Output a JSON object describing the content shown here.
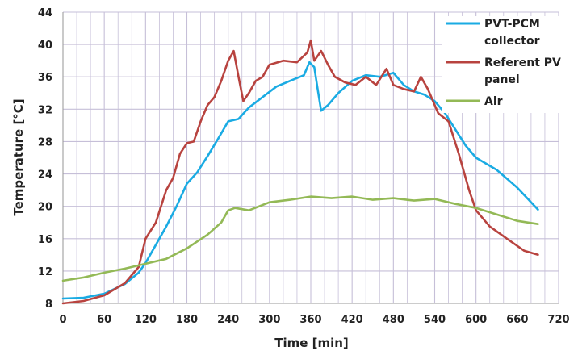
{
  "chart_data": {
    "type": "line",
    "xlabel": "Time [min]",
    "ylabel": "Temperature [°C]",
    "xlim": [
      0,
      720
    ],
    "ylim": [
      8,
      44
    ],
    "x_ticks": [
      0,
      60,
      120,
      180,
      240,
      300,
      360,
      420,
      480,
      540,
      600,
      660,
      720
    ],
    "y_ticks": [
      8,
      12,
      16,
      20,
      24,
      28,
      32,
      36,
      40,
      44
    ],
    "grid": true,
    "legend_position": "top-right",
    "series": [
      {
        "name": "PVT-PCM collector",
        "legend_lines": [
          "PVT-PCM",
          "collector"
        ],
        "color": "#1AABE3",
        "x": [
          0,
          30,
          60,
          90,
          110,
          120,
          130,
          150,
          165,
          180,
          195,
          210,
          225,
          240,
          255,
          270,
          290,
          310,
          330,
          350,
          358,
          365,
          370,
          375,
          385,
          400,
          420,
          440,
          460,
          480,
          495,
          510,
          525,
          540,
          555,
          570,
          585,
          600,
          630,
          660,
          690
        ],
        "y": [
          8.6,
          8.7,
          9.2,
          10.4,
          11.8,
          13.0,
          14.5,
          17.5,
          20.0,
          22.8,
          24.2,
          26.2,
          28.3,
          30.5,
          30.8,
          32.2,
          33.5,
          34.8,
          35.5,
          36.2,
          37.8,
          37.2,
          34.5,
          31.8,
          32.5,
          34.0,
          35.5,
          36.2,
          36.0,
          36.5,
          35.0,
          34.2,
          33.8,
          33.0,
          31.5,
          29.5,
          27.5,
          26.0,
          24.5,
          22.3,
          19.6
        ]
      },
      {
        "name": "Referent PV panel",
        "legend_lines": [
          "Referent PV",
          "panel"
        ],
        "color": "#B8433F",
        "x": [
          0,
          30,
          60,
          90,
          110,
          120,
          135,
          150,
          160,
          170,
          180,
          190,
          200,
          210,
          220,
          230,
          240,
          248,
          255,
          262,
          270,
          280,
          290,
          300,
          320,
          340,
          355,
          360,
          365,
          375,
          385,
          395,
          410,
          425,
          440,
          455,
          470,
          480,
          495,
          510,
          520,
          530,
          545,
          560,
          575,
          590,
          600,
          620,
          645,
          670,
          690
        ],
        "y": [
          8.0,
          8.3,
          9.0,
          10.5,
          12.5,
          16.0,
          18.0,
          22.0,
          23.5,
          26.5,
          27.8,
          28.0,
          30.5,
          32.5,
          33.5,
          35.5,
          38.0,
          39.2,
          36.0,
          33.0,
          34.0,
          35.5,
          36.0,
          37.5,
          38.0,
          37.8,
          39.0,
          40.5,
          38.0,
          39.2,
          37.5,
          36.0,
          35.3,
          35.0,
          36.0,
          35.0,
          37.0,
          35.0,
          34.5,
          34.2,
          36.0,
          34.5,
          31.5,
          30.5,
          26.5,
          22.0,
          19.5,
          17.5,
          16.0,
          14.5,
          14.0
        ]
      },
      {
        "name": "Air",
        "legend_lines": [
          "Air"
        ],
        "color": "#93B956",
        "x": [
          0,
          30,
          60,
          90,
          120,
          150,
          180,
          210,
          230,
          240,
          250,
          270,
          300,
          330,
          360,
          390,
          420,
          450,
          480,
          510,
          540,
          570,
          600,
          630,
          660,
          690
        ],
        "y": [
          10.8,
          11.2,
          11.8,
          12.3,
          12.9,
          13.5,
          14.8,
          16.5,
          18.0,
          19.5,
          19.8,
          19.5,
          20.5,
          20.8,
          21.2,
          21.0,
          21.2,
          20.8,
          21.0,
          20.7,
          20.9,
          20.3,
          19.8,
          19.0,
          18.2,
          17.8
        ]
      }
    ]
  }
}
